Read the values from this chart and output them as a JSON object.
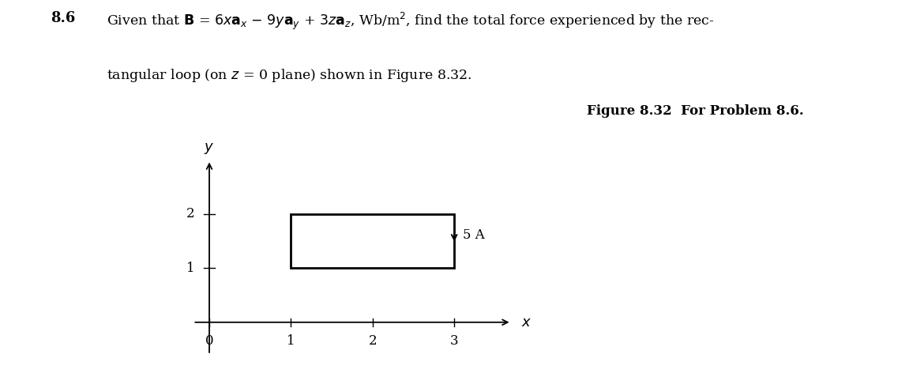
{
  "background_color": "#ffffff",
  "rect_x1": 1,
  "rect_x2": 3,
  "rect_y1": 1,
  "rect_y2": 2,
  "current_label": "5 A",
  "figure_caption": "Figure 8.32  For Problem 8.6.",
  "axis_xlim": [
    -0.3,
    4.0
  ],
  "axis_ylim": [
    -0.8,
    3.2
  ],
  "x_ticks": [
    0,
    1,
    2,
    3
  ],
  "y_ticks": [
    1,
    2
  ],
  "tick_fontsize": 12,
  "label_fontsize": 13,
  "caption_fontsize": 12,
  "line1_number": "8.6",
  "line1_text": "Given that B = 6xaₓ − 9yaᵧ + 3zaᵩ, Wb/m², find the total force experienced by the rec-",
  "line2_text": "tangular loop (on z = 0 plane) shown in Figure 8.32."
}
